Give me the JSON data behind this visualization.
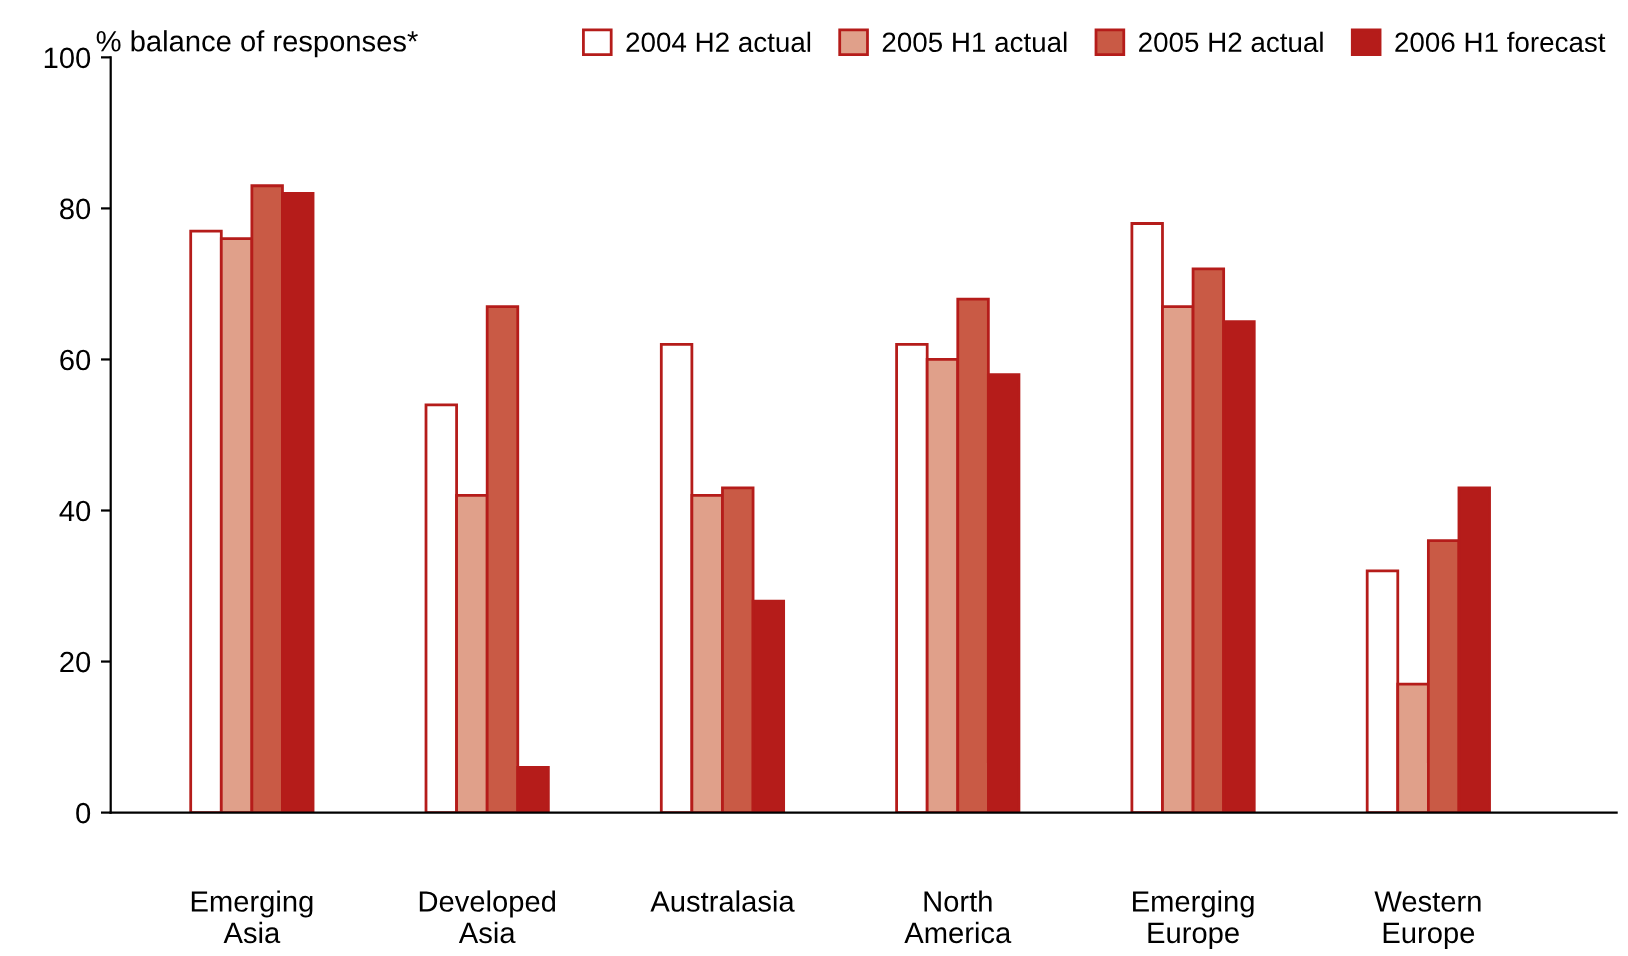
{
  "chart_data": {
    "type": "bar",
    "ylabel": "% balance of responses*",
    "categories": [
      "Emerging\nAsia",
      "Developed\nAsia",
      "Australasia",
      "North\nAmerica",
      "Emerging\nEurope",
      "Western\nEurope"
    ],
    "series": [
      {
        "name": "2004 H2 actual",
        "color": "#ffffff",
        "values": [
          77,
          54,
          62,
          62,
          78,
          32
        ]
      },
      {
        "name": "2005 H1 actual",
        "color": "#e0a08a",
        "values": [
          76,
          42,
          42,
          60,
          67,
          17
        ]
      },
      {
        "name": "2005 H2 actual",
        "color": "#c95a45",
        "values": [
          83,
          67,
          43,
          68,
          72,
          36
        ]
      },
      {
        "name": "2006 H1 forecast",
        "color": "#b51c1a",
        "values": [
          82,
          6,
          28,
          58,
          65,
          43
        ]
      }
    ],
    "ylim": [
      0,
      100
    ],
    "yticks": [
      0,
      20,
      40,
      60,
      80,
      100
    ],
    "grid": false,
    "legend": "top"
  }
}
